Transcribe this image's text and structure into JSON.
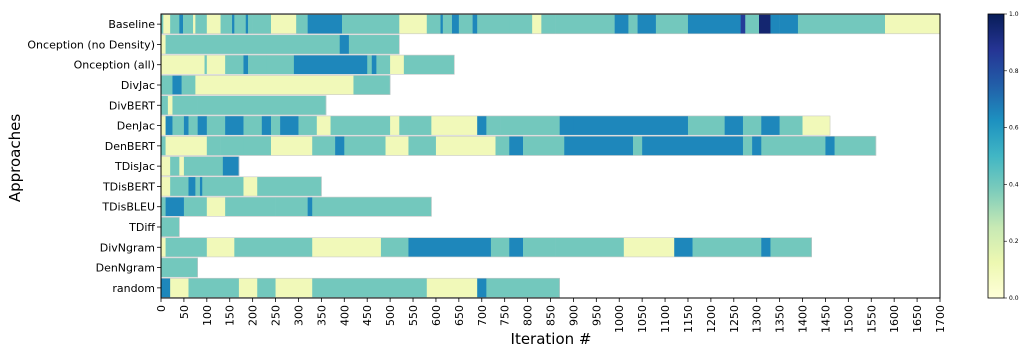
{
  "chart_data": {
    "type": "heatmap",
    "xlabel": "Iteration #",
    "ylabel": "Approaches",
    "xlim": [
      0,
      1700
    ],
    "x_ticks": [
      0,
      50,
      100,
      150,
      200,
      250,
      300,
      350,
      400,
      450,
      500,
      550,
      600,
      650,
      700,
      750,
      800,
      850,
      900,
      950,
      1000,
      1050,
      1100,
      1150,
      1200,
      1250,
      1300,
      1350,
      1400,
      1450,
      1500,
      1550,
      1600,
      1650,
      1700
    ],
    "colorbar": {
      "colormap": "YlGnBu",
      "range": [
        0.0,
        1.0
      ],
      "ticks": [
        "0.0",
        "0.2",
        "0.4",
        "0.6",
        "0.8",
        "1.0"
      ]
    },
    "rows": [
      {
        "label": "Baseline",
        "end": 1700,
        "segments": [
          [
            0,
            5,
            0.4
          ],
          [
            5,
            20,
            0.1
          ],
          [
            20,
            40,
            0.4
          ],
          [
            40,
            48,
            0.65
          ],
          [
            48,
            70,
            0.4
          ],
          [
            70,
            75,
            0.1
          ],
          [
            75,
            100,
            0.4
          ],
          [
            100,
            130,
            0.1
          ],
          [
            130,
            155,
            0.4
          ],
          [
            155,
            160,
            0.65
          ],
          [
            160,
            185,
            0.4
          ],
          [
            185,
            190,
            0.65
          ],
          [
            190,
            200,
            0.4
          ],
          [
            200,
            240,
            0.4
          ],
          [
            240,
            295,
            0.1
          ],
          [
            295,
            300,
            0.4
          ],
          [
            300,
            320,
            0.4
          ],
          [
            320,
            395,
            0.65
          ],
          [
            395,
            520,
            0.4
          ],
          [
            520,
            580,
            0.1
          ],
          [
            580,
            610,
            0.4
          ],
          [
            610,
            615,
            0.65
          ],
          [
            615,
            635,
            0.4
          ],
          [
            635,
            650,
            0.65
          ],
          [
            650,
            680,
            0.4
          ],
          [
            680,
            690,
            0.65
          ],
          [
            690,
            760,
            0.4
          ],
          [
            760,
            810,
            0.4
          ],
          [
            810,
            830,
            0.1
          ],
          [
            830,
            860,
            0.4
          ],
          [
            860,
            990,
            0.4
          ],
          [
            990,
            1020,
            0.65
          ],
          [
            1020,
            1040,
            0.4
          ],
          [
            1040,
            1080,
            0.65
          ],
          [
            1080,
            1150,
            0.4
          ],
          [
            1150,
            1265,
            0.65
          ],
          [
            1265,
            1275,
            0.85
          ],
          [
            1275,
            1305,
            0.4
          ],
          [
            1305,
            1330,
            0.95
          ],
          [
            1330,
            1350,
            0.65
          ],
          [
            1350,
            1390,
            0.65
          ],
          [
            1390,
            1580,
            0.4
          ],
          [
            1580,
            1700,
            0.1
          ]
        ]
      },
      {
        "label": "Onception (no Density)",
        "end": 520,
        "segments": [
          [
            0,
            10,
            0.1
          ],
          [
            10,
            390,
            0.4
          ],
          [
            390,
            410,
            0.65
          ],
          [
            410,
            520,
            0.4
          ]
        ]
      },
      {
        "label": "Onception (all)",
        "end": 640,
        "segments": [
          [
            0,
            95,
            0.1
          ],
          [
            95,
            100,
            0.4
          ],
          [
            100,
            140,
            0.1
          ],
          [
            140,
            180,
            0.4
          ],
          [
            180,
            190,
            0.65
          ],
          [
            190,
            230,
            0.4
          ],
          [
            230,
            290,
            0.4
          ],
          [
            290,
            450,
            0.65
          ],
          [
            450,
            460,
            0.4
          ],
          [
            460,
            470,
            0.65
          ],
          [
            470,
            500,
            0.4
          ],
          [
            500,
            530,
            0.1
          ],
          [
            530,
            640,
            0.4
          ]
        ]
      },
      {
        "label": "DivJac",
        "end": 500,
        "segments": [
          [
            0,
            25,
            0.4
          ],
          [
            25,
            45,
            0.65
          ],
          [
            45,
            75,
            0.4
          ],
          [
            75,
            420,
            0.1
          ],
          [
            420,
            500,
            0.4
          ]
        ]
      },
      {
        "label": "DivBERT",
        "end": 360,
        "segments": [
          [
            0,
            15,
            0.4
          ],
          [
            15,
            25,
            0.1
          ],
          [
            25,
            80,
            0.4
          ],
          [
            80,
            360,
            0.4
          ]
        ]
      },
      {
        "label": "DenJac",
        "end": 1460,
        "segments": [
          [
            0,
            10,
            0.1
          ],
          [
            10,
            25,
            0.65
          ],
          [
            25,
            50,
            0.4
          ],
          [
            50,
            60,
            0.65
          ],
          [
            60,
            80,
            0.4
          ],
          [
            80,
            100,
            0.65
          ],
          [
            100,
            140,
            0.4
          ],
          [
            140,
            180,
            0.65
          ],
          [
            180,
            220,
            0.4
          ],
          [
            220,
            240,
            0.65
          ],
          [
            240,
            260,
            0.4
          ],
          [
            260,
            300,
            0.65
          ],
          [
            300,
            340,
            0.4
          ],
          [
            340,
            370,
            0.1
          ],
          [
            370,
            500,
            0.4
          ],
          [
            500,
            520,
            0.1
          ],
          [
            520,
            540,
            0.4
          ],
          [
            540,
            590,
            0.4
          ],
          [
            590,
            690,
            0.1
          ],
          [
            690,
            710,
            0.65
          ],
          [
            710,
            740,
            0.4
          ],
          [
            740,
            870,
            0.4
          ],
          [
            870,
            900,
            0.65
          ],
          [
            900,
            1150,
            0.65
          ],
          [
            1150,
            1230,
            0.4
          ],
          [
            1230,
            1270,
            0.65
          ],
          [
            1270,
            1310,
            0.4
          ],
          [
            1310,
            1350,
            0.65
          ],
          [
            1350,
            1400,
            0.4
          ],
          [
            1400,
            1420,
            0.1
          ],
          [
            1420,
            1460,
            0.1
          ]
        ]
      },
      {
        "label": "DenBERT",
        "end": 1560,
        "segments": [
          [
            0,
            10,
            0.4
          ],
          [
            10,
            100,
            0.1
          ],
          [
            100,
            130,
            0.4
          ],
          [
            130,
            180,
            0.4
          ],
          [
            180,
            220,
            0.4
          ],
          [
            220,
            240,
            0.4
          ],
          [
            240,
            330,
            0.1
          ],
          [
            330,
            380,
            0.4
          ],
          [
            380,
            400,
            0.65
          ],
          [
            400,
            490,
            0.4
          ],
          [
            490,
            540,
            0.1
          ],
          [
            540,
            600,
            0.4
          ],
          [
            600,
            730,
            0.1
          ],
          [
            730,
            760,
            0.4
          ],
          [
            760,
            790,
            0.65
          ],
          [
            790,
            880,
            0.4
          ],
          [
            880,
            1030,
            0.65
          ],
          [
            1030,
            1050,
            0.4
          ],
          [
            1050,
            1270,
            0.65
          ],
          [
            1270,
            1290,
            0.4
          ],
          [
            1290,
            1310,
            0.65
          ],
          [
            1310,
            1370,
            0.4
          ],
          [
            1370,
            1450,
            0.4
          ],
          [
            1450,
            1470,
            0.65
          ],
          [
            1470,
            1560,
            0.4
          ]
        ]
      },
      {
        "label": "TDisJac",
        "end": 170,
        "segments": [
          [
            0,
            20,
            0.1
          ],
          [
            20,
            40,
            0.4
          ],
          [
            40,
            50,
            0.1
          ],
          [
            50,
            135,
            0.4
          ],
          [
            135,
            170,
            0.65
          ]
        ]
      },
      {
        "label": "TDisBERT",
        "end": 350,
        "segments": [
          [
            0,
            20,
            0.1
          ],
          [
            20,
            60,
            0.4
          ],
          [
            60,
            75,
            0.65
          ],
          [
            75,
            85,
            0.4
          ],
          [
            85,
            90,
            0.65
          ],
          [
            90,
            180,
            0.4
          ],
          [
            180,
            210,
            0.1
          ],
          [
            210,
            350,
            0.4
          ]
        ]
      },
      {
        "label": "TDisBLEU",
        "end": 590,
        "segments": [
          [
            0,
            10,
            0.4
          ],
          [
            10,
            50,
            0.65
          ],
          [
            50,
            100,
            0.4
          ],
          [
            100,
            140,
            0.1
          ],
          [
            140,
            210,
            0.4
          ],
          [
            210,
            250,
            0.4
          ],
          [
            250,
            320,
            0.4
          ],
          [
            320,
            330,
            0.65
          ],
          [
            330,
            590,
            0.4
          ]
        ]
      },
      {
        "label": "TDiff",
        "end": 40,
        "segments": [
          [
            0,
            40,
            0.4
          ]
        ]
      },
      {
        "label": "DivNgram",
        "end": 1420,
        "segments": [
          [
            0,
            10,
            0.1
          ],
          [
            10,
            100,
            0.4
          ],
          [
            100,
            160,
            0.1
          ],
          [
            160,
            330,
            0.4
          ],
          [
            330,
            480,
            0.1
          ],
          [
            480,
            540,
            0.4
          ],
          [
            540,
            720,
            0.65
          ],
          [
            720,
            760,
            0.4
          ],
          [
            760,
            790,
            0.65
          ],
          [
            790,
            860,
            0.4
          ],
          [
            860,
            960,
            0.4
          ],
          [
            960,
            1010,
            0.4
          ],
          [
            1010,
            1120,
            0.1
          ],
          [
            1120,
            1160,
            0.65
          ],
          [
            1160,
            1310,
            0.4
          ],
          [
            1310,
            1330,
            0.65
          ],
          [
            1330,
            1420,
            0.4
          ]
        ]
      },
      {
        "label": "DenNgram",
        "end": 80,
        "segments": [
          [
            0,
            80,
            0.4
          ]
        ]
      },
      {
        "label": "random",
        "end": 870,
        "segments": [
          [
            0,
            20,
            0.65
          ],
          [
            20,
            60,
            0.1
          ],
          [
            60,
            170,
            0.4
          ],
          [
            170,
            210,
            0.1
          ],
          [
            210,
            250,
            0.4
          ],
          [
            250,
            330,
            0.1
          ],
          [
            330,
            520,
            0.4
          ],
          [
            520,
            580,
            0.4
          ],
          [
            580,
            690,
            0.1
          ],
          [
            690,
            710,
            0.65
          ],
          [
            710,
            870,
            0.4
          ]
        ]
      }
    ]
  }
}
